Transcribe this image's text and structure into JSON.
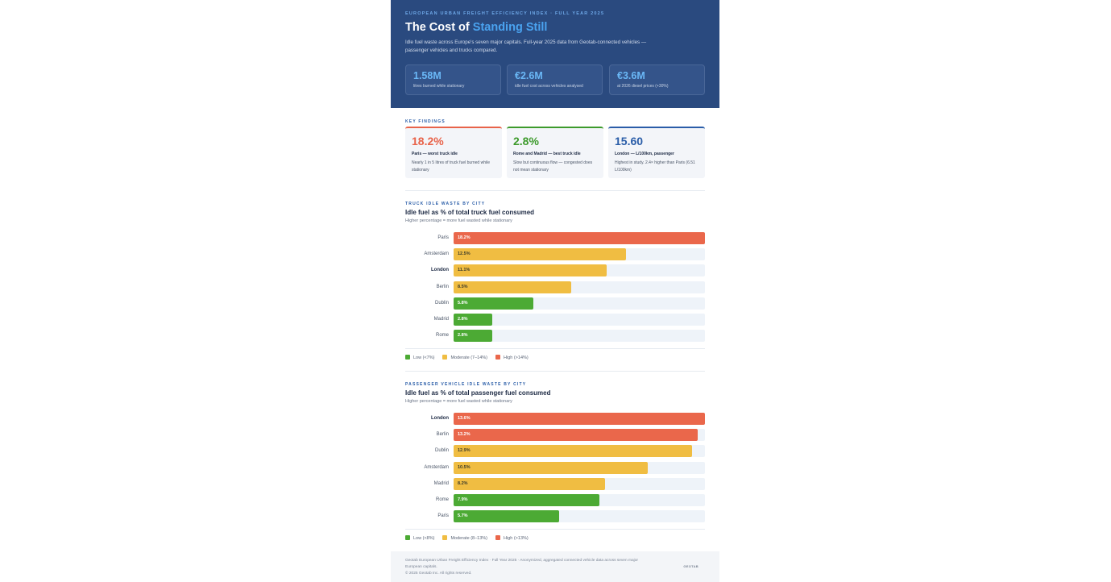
{
  "header": {
    "eyebrow": "European Urban Freight Efficiency Index · Full Year 2025",
    "title_main": "The Cost of ",
    "title_accent": "Standing Still",
    "subtitle": "Idle fuel waste across Europe's seven major capitals. Full-year 2025 data from Geotab-connected vehicles — passenger vehicles and trucks compared.",
    "stats": [
      {
        "value": "1.58M",
        "label": "litres burned while stationary"
      },
      {
        "value": "€2.6M",
        "label": "idle fuel cost across vehicles analysed"
      },
      {
        "value": "€3.6M",
        "label": "at 2026 diesel prices (+30%)"
      }
    ]
  },
  "findings": {
    "section_label": "Key Findings",
    "cards": [
      {
        "value": "18.2%",
        "head": "Paris — worst truck idle",
        "desc": "Nearly 1 in 5 litres of truck fuel burned while stationary",
        "color": "#e8634a"
      },
      {
        "value": "2.8%",
        "head": "Rome and Madrid — best truck idle",
        "desc": "Slow but continuous flow — congested does not mean stationary",
        "color": "#3d9a2c"
      },
      {
        "value": "15.60",
        "head": "London — L/100km, passenger",
        "desc": "Highest in study. 2.4× higher than Paris (6.51 L/100km)",
        "color": "#2a5da8"
      }
    ]
  },
  "colors": {
    "low": "#4caa34",
    "moderate": "#f0bd42",
    "high": "#ea674b"
  },
  "chart_data": [
    {
      "type": "bar",
      "section_label": "Truck Idle Waste by City",
      "title": "Idle fuel as % of total truck fuel consumed",
      "subtitle": "Higher percentage = more fuel wasted while stationary",
      "categories": [
        "Paris",
        "Amsterdam",
        "London",
        "Berlin",
        "Dublin",
        "Madrid",
        "Rome"
      ],
      "values": [
        18.2,
        12.5,
        11.1,
        8.5,
        5.8,
        2.8,
        2.8
      ],
      "value_labels": [
        "18.2%",
        "12.5%",
        "11.1%",
        "8.5%",
        "5.8%",
        "2.8%",
        "2.8%"
      ],
      "levels": [
        "high",
        "moderate",
        "moderate",
        "moderate",
        "low",
        "low",
        "low"
      ],
      "highlight": "London",
      "xlim": [
        0,
        18.2
      ],
      "legend": [
        {
          "label": "Low (<7%)",
          "level": "low"
        },
        {
          "label": "Moderate (7–14%)",
          "level": "moderate"
        },
        {
          "label": "High (>14%)",
          "level": "high"
        }
      ]
    },
    {
      "type": "bar",
      "section_label": "Passenger Vehicle Idle Waste by City",
      "title": "Idle fuel as % of total passenger fuel consumed",
      "subtitle": "Higher percentage = more fuel wasted while stationary",
      "categories": [
        "London",
        "Berlin",
        "Dublin",
        "Amsterdam",
        "Madrid",
        "Rome",
        "Paris"
      ],
      "values": [
        13.6,
        13.2,
        12.9,
        10.5,
        8.2,
        7.9,
        5.7
      ],
      "value_labels": [
        "13.6%",
        "13.2%",
        "12.9%",
        "10.5%",
        "8.2%",
        "7.9%",
        "5.7%"
      ],
      "levels": [
        "high",
        "high",
        "moderate",
        "moderate",
        "moderate",
        "low",
        "low"
      ],
      "highlight": "London",
      "xlim": [
        0,
        13.6
      ],
      "legend": [
        {
          "label": "Low (<8%)",
          "level": "low"
        },
        {
          "label": "Moderate (8–13%)",
          "level": "moderate"
        },
        {
          "label": "High (>13%)",
          "level": "high"
        }
      ]
    }
  ],
  "footer": {
    "text": "Geotab European Urban Freight Efficiency Index · Full Year 2025 · Anonymized, aggregated connected vehicle data across seven major European capitals.",
    "copyright": "© 2025 Geotab Inc. All rights reserved.",
    "logo": "GEOTAB"
  }
}
